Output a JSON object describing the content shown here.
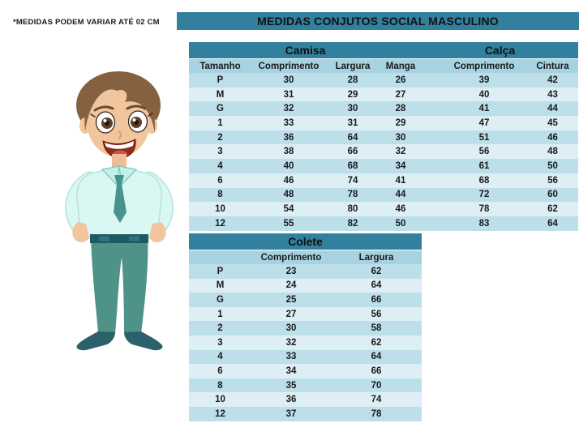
{
  "note": "*MEDIDAS PODEM VARIAR ATÉ 02 CM",
  "title": "MEDIDAS CONJUTOS SOCIAL MASCULINO",
  "main_table": {
    "groups": {
      "camisa": "Camisa",
      "calca": "Calça"
    },
    "columns": [
      "Tamanho",
      "Comprimento",
      "Largura",
      "Manga",
      "",
      "Comprimento",
      "Cintura"
    ],
    "rows": [
      [
        "P",
        "30",
        "28",
        "26",
        "",
        "39",
        "42"
      ],
      [
        "M",
        "31",
        "29",
        "27",
        "",
        "40",
        "43"
      ],
      [
        "G",
        "32",
        "30",
        "28",
        "",
        "41",
        "44"
      ],
      [
        "1",
        "33",
        "31",
        "29",
        "",
        "47",
        "45"
      ],
      [
        "2",
        "36",
        "64",
        "30",
        "",
        "51",
        "46"
      ],
      [
        "3",
        "38",
        "66",
        "32",
        "",
        "56",
        "48"
      ],
      [
        "4",
        "40",
        "68",
        "34",
        "",
        "61",
        "50"
      ],
      [
        "6",
        "46",
        "74",
        "41",
        "",
        "68",
        "56"
      ],
      [
        "8",
        "48",
        "78",
        "44",
        "",
        "72",
        "60"
      ],
      [
        "10",
        "54",
        "80",
        "46",
        "",
        "78",
        "62"
      ],
      [
        "12",
        "55",
        "82",
        "50",
        "",
        "83",
        "64"
      ]
    ]
  },
  "colete_table": {
    "title": "Colete",
    "columns": [
      "",
      "Comprimento",
      "Largura"
    ],
    "rows": [
      [
        "P",
        "23",
        "62"
      ],
      [
        "M",
        "24",
        "64"
      ],
      [
        "G",
        "25",
        "66"
      ],
      [
        "1",
        "27",
        "56"
      ],
      [
        "2",
        "30",
        "58"
      ],
      [
        "3",
        "32",
        "62"
      ],
      [
        "4",
        "33",
        "64"
      ],
      [
        "6",
        "34",
        "66"
      ],
      [
        "8",
        "35",
        "70"
      ],
      [
        "10",
        "36",
        "74"
      ],
      [
        "12",
        "37",
        "78"
      ]
    ]
  },
  "colors": {
    "header_teal": "#31809d",
    "column_header_bg": "#a7d2e2",
    "row_dark": "#bcdfe9",
    "row_light": "#ddeff5",
    "text": "#1a1a1a"
  },
  "illustration": {
    "name": "boy-cartoon"
  }
}
